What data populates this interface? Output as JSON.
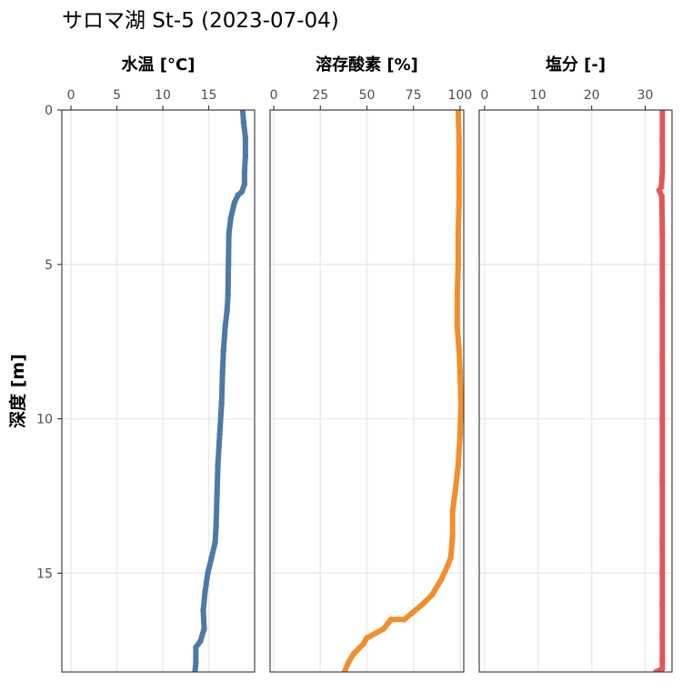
{
  "chart_data": {
    "type": "scatter",
    "title": "サロマ湖 St-5 (2023-07-04)",
    "ylabel": "深度 [m]",
    "ylim": [
      0,
      18.2
    ],
    "y_reversed": true,
    "y_ticks": [
      0,
      5,
      10,
      15
    ],
    "panels": [
      {
        "name": "water-temp",
        "title": "水温 [°C]",
        "xlim": [
          -1,
          20
        ],
        "x_ticks": [
          0,
          5,
          10,
          15
        ],
        "color": "#4e79a7",
        "points": [
          [
            18.7,
            0.0
          ],
          [
            18.8,
            0.4
          ],
          [
            19.0,
            0.9
          ],
          [
            19.0,
            1.5
          ],
          [
            18.9,
            2.0
          ],
          [
            18.9,
            2.4
          ],
          [
            18.6,
            2.65
          ],
          [
            18.2,
            2.75
          ],
          [
            17.8,
            3.0
          ],
          [
            17.4,
            3.5
          ],
          [
            17.2,
            4.0
          ],
          [
            17.15,
            5.0
          ],
          [
            17.1,
            6.0
          ],
          [
            17.0,
            6.5
          ],
          [
            16.8,
            7.0
          ],
          [
            16.6,
            7.8
          ],
          [
            16.5,
            8.5
          ],
          [
            16.4,
            9.5
          ],
          [
            16.2,
            10.5
          ],
          [
            16.0,
            11.5
          ],
          [
            15.9,
            12.5
          ],
          [
            15.8,
            13.5
          ],
          [
            15.7,
            14.0
          ],
          [
            15.3,
            14.5
          ],
          [
            14.9,
            15.0
          ],
          [
            14.6,
            15.6
          ],
          [
            14.4,
            16.2
          ],
          [
            14.5,
            16.8
          ],
          [
            14.1,
            17.2
          ],
          [
            13.6,
            17.4
          ],
          [
            13.6,
            17.9
          ],
          [
            13.5,
            18.2
          ]
        ]
      },
      {
        "name": "dissolved-oxygen",
        "title": "溶存酸素 [%]",
        "xlim": [
          -2,
          102
        ],
        "x_ticks": [
          0,
          25,
          50,
          75,
          100
        ],
        "color": "#f28e2b",
        "points": [
          [
            99.0,
            0.0
          ],
          [
            99.5,
            1.0
          ],
          [
            99.5,
            2.0
          ],
          [
            99.5,
            3.0
          ],
          [
            99.0,
            4.0
          ],
          [
            99.0,
            5.0
          ],
          [
            98.5,
            6.0
          ],
          [
            98.5,
            7.0
          ],
          [
            99.5,
            7.8
          ],
          [
            100.0,
            8.5
          ],
          [
            100.5,
            9.5
          ],
          [
            100.0,
            10.5
          ],
          [
            99.0,
            11.5
          ],
          [
            97.5,
            12.3
          ],
          [
            96.0,
            13.0
          ],
          [
            96.0,
            13.8
          ],
          [
            95.0,
            14.5
          ],
          [
            93.0,
            14.8
          ],
          [
            90.0,
            15.2
          ],
          [
            85.0,
            15.7
          ],
          [
            80.0,
            16.0
          ],
          [
            74.0,
            16.3
          ],
          [
            70.0,
            16.5
          ],
          [
            63.0,
            16.5
          ],
          [
            59.0,
            16.8
          ],
          [
            50.0,
            17.1
          ],
          [
            48.0,
            17.3
          ],
          [
            43.0,
            17.6
          ],
          [
            40.0,
            17.9
          ],
          [
            38.0,
            18.2
          ]
        ]
      },
      {
        "name": "salinity",
        "title": "塩分 [-]",
        "xlim": [
          -1,
          35
        ],
        "x_ticks": [
          0,
          10,
          20,
          30
        ],
        "color": "#e15759",
        "points": [
          [
            33.2,
            0.0
          ],
          [
            33.2,
            1.0
          ],
          [
            33.2,
            2.0
          ],
          [
            33.0,
            2.5
          ],
          [
            32.6,
            2.6
          ],
          [
            33.1,
            2.8
          ],
          [
            33.2,
            4.0
          ],
          [
            33.2,
            6.0
          ],
          [
            33.2,
            8.0
          ],
          [
            33.2,
            10.0
          ],
          [
            33.2,
            12.0
          ],
          [
            33.2,
            14.0
          ],
          [
            33.2,
            15.0
          ],
          [
            33.2,
            16.0
          ],
          [
            33.2,
            17.0
          ],
          [
            33.2,
            17.8
          ],
          [
            33.2,
            18.1
          ],
          [
            32.0,
            18.2
          ]
        ]
      }
    ]
  }
}
